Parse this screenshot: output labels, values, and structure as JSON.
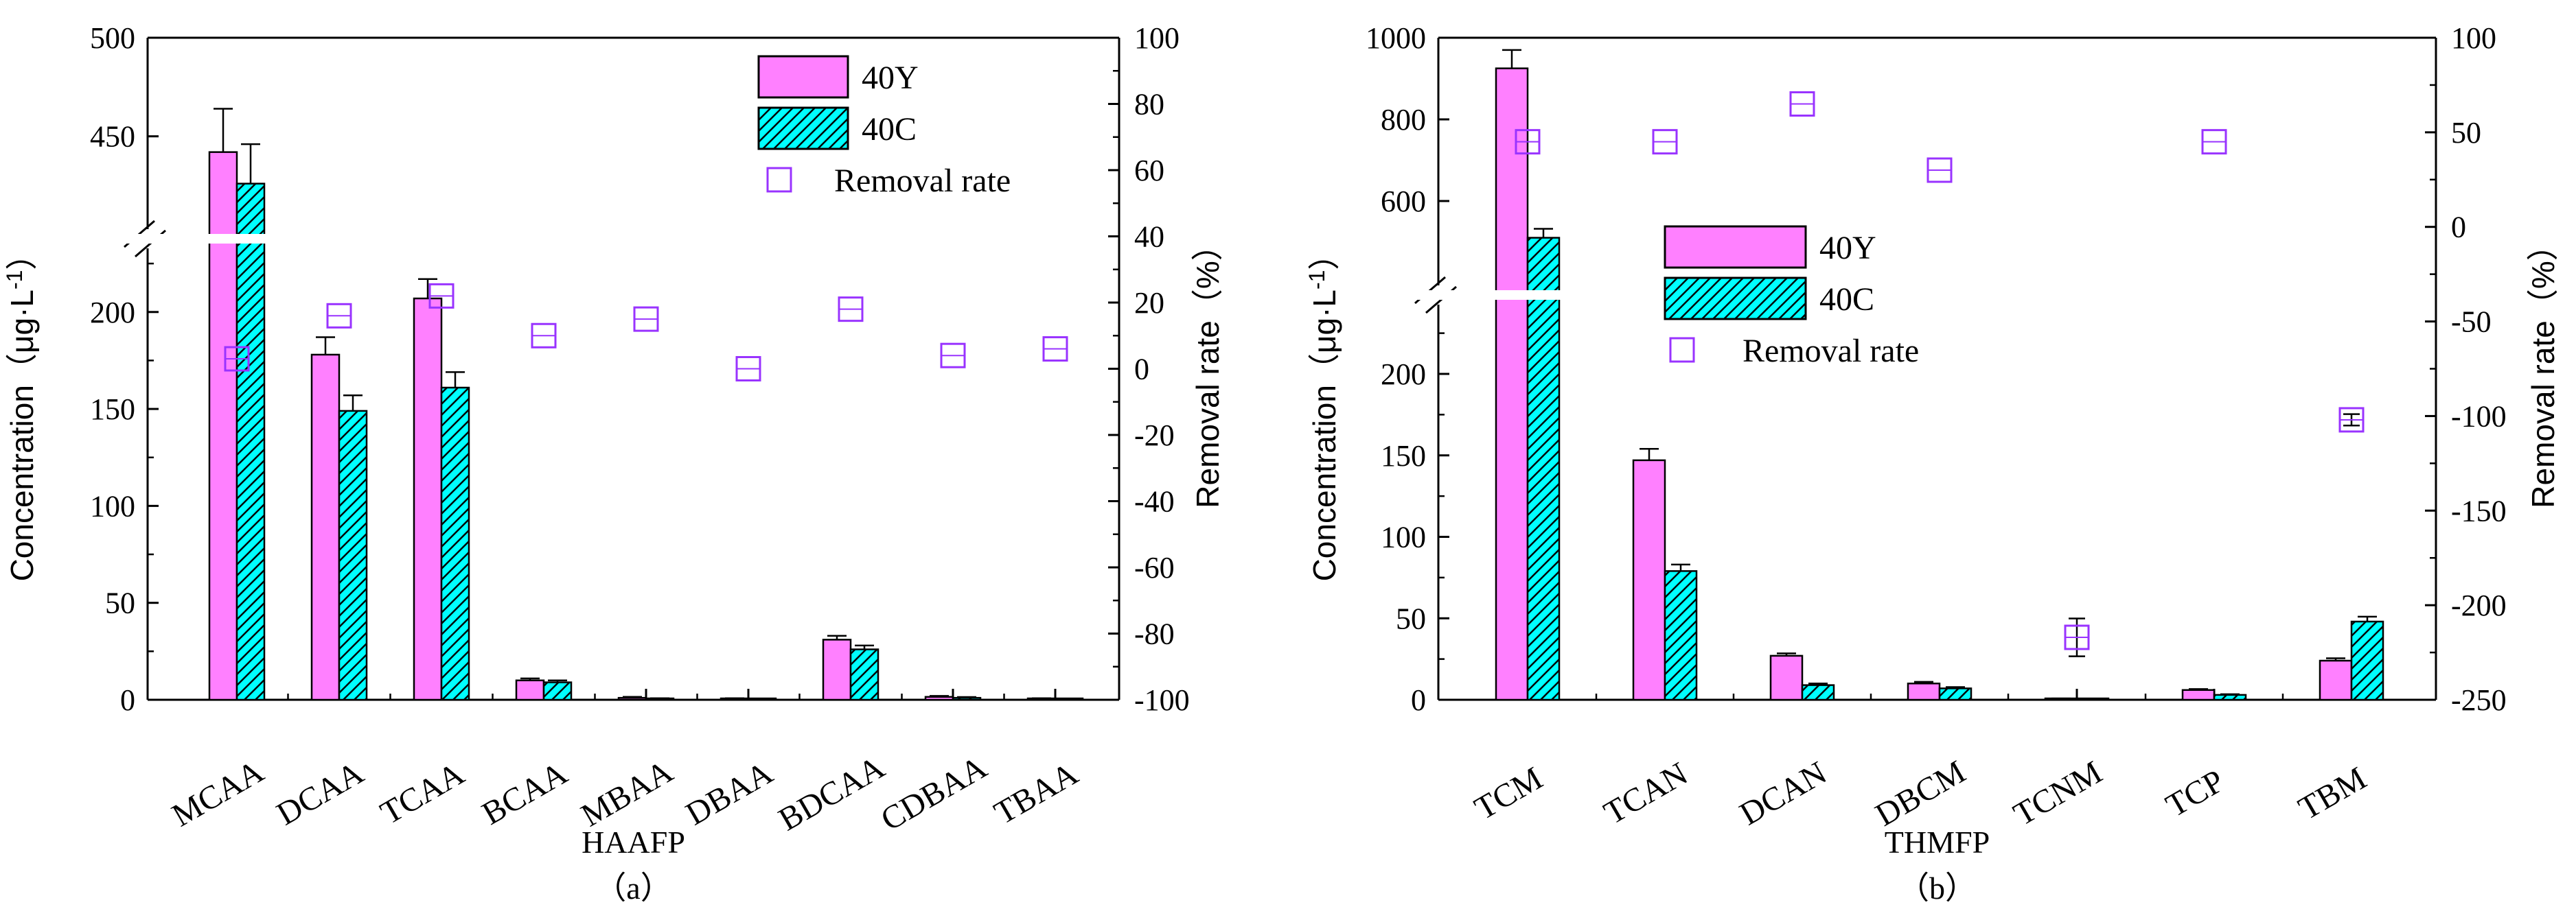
{
  "colors": {
    "y40": "#ff80ff",
    "c40": "#00ffff",
    "removal": "#9933ff",
    "axis": "#000000",
    "hatch": "#000000"
  },
  "chart_data": [
    {
      "type": "bar",
      "panel": "(a)",
      "xlabel": "HAAFP",
      "ylabel": "Concentration (μg·L-1)",
      "ylabel_main": "Concentration（μg·L",
      "ylabel_sup": "-1",
      "ylabel_close": "）",
      "y2label": "Removal rate（%）",
      "y_lower_range": [
        0,
        230
      ],
      "y_lower_ticks": [
        "0",
        "50",
        "100",
        "150",
        "200"
      ],
      "y_upper_range": [
        405,
        500
      ],
      "y_upper_ticks": [
        "450",
        "500"
      ],
      "y2_range": [
        -100,
        100
      ],
      "y2_ticks": [
        "-100",
        "-80",
        "-60",
        "-40",
        "-20",
        "0",
        "20",
        "40",
        "60",
        "80",
        "100"
      ],
      "categories": [
        "MCAA",
        "DCAA",
        "TCAA",
        "BCAA",
        "MBAA",
        "DBAA",
        "BDCAA",
        "CDBAA",
        "TBAA"
      ],
      "series": [
        {
          "name": "40Y",
          "values": [
            442,
            178,
            207,
            10,
            1,
            0.5,
            31,
            1.5,
            0.5
          ],
          "errors": [
            22,
            9,
            10,
            1,
            0.5,
            0.3,
            2,
            0.5,
            0.3
          ]
        },
        {
          "name": "40C",
          "values": [
            426,
            149,
            161,
            9,
            0.5,
            0.3,
            26,
            1,
            0.3
          ],
          "errors": [
            20,
            8,
            8,
            1,
            0.3,
            0.2,
            2,
            0.4,
            0.2
          ]
        }
      ],
      "removal_rate": [
        3,
        16,
        22,
        10,
        15,
        0,
        18,
        4,
        6
      ],
      "legend": {
        "position": "top-right",
        "entries": [
          "40Y",
          "40C",
          "Removal rate"
        ]
      }
    },
    {
      "type": "bar",
      "panel": "(b)",
      "xlabel": "THMFP",
      "ylabel": "Concentration (μg·L-1)",
      "ylabel_main": "Concentration（μg·L",
      "ylabel_sup": "-1",
      "ylabel_close": "）",
      "y2label": "Removal rate（%）",
      "y_lower_range": [
        0,
        240
      ],
      "y_lower_ticks": [
        "0",
        "50",
        "100",
        "150",
        "200"
      ],
      "y_upper_range": [
        400,
        1000
      ],
      "y_upper_ticks": [
        "600",
        "800",
        "1000"
      ],
      "y2_range": [
        -250,
        100
      ],
      "y2_ticks": [
        "-250",
        "-200",
        "-150",
        "-100",
        "-50",
        "0",
        "50",
        "100"
      ],
      "categories": [
        "TCM",
        "TCAN",
        "DCAN",
        "DBCM",
        "TCNM",
        "TCP",
        "TBM"
      ],
      "series": [
        {
          "name": "40Y",
          "values": [
            925,
            147,
            27,
            10,
            0.5,
            6,
            24
          ],
          "errors": [
            45,
            7,
            1.5,
            1,
            0.3,
            0.6,
            1.5
          ]
        },
        {
          "name": "40C",
          "values": [
            510,
            79,
            9,
            7,
            0.5,
            3,
            48
          ],
          "errors": [
            22,
            4,
            1,
            0.8,
            0.2,
            0.4,
            3
          ]
        }
      ],
      "removal_rate": [
        45,
        45,
        65,
        30,
        -217,
        45,
        -102
      ],
      "removal_error": [
        0,
        0,
        0,
        0,
        10,
        0,
        3
      ],
      "legend": {
        "position": "top-center",
        "entries": [
          "40Y",
          "40C",
          "Removal rate"
        ]
      }
    }
  ]
}
